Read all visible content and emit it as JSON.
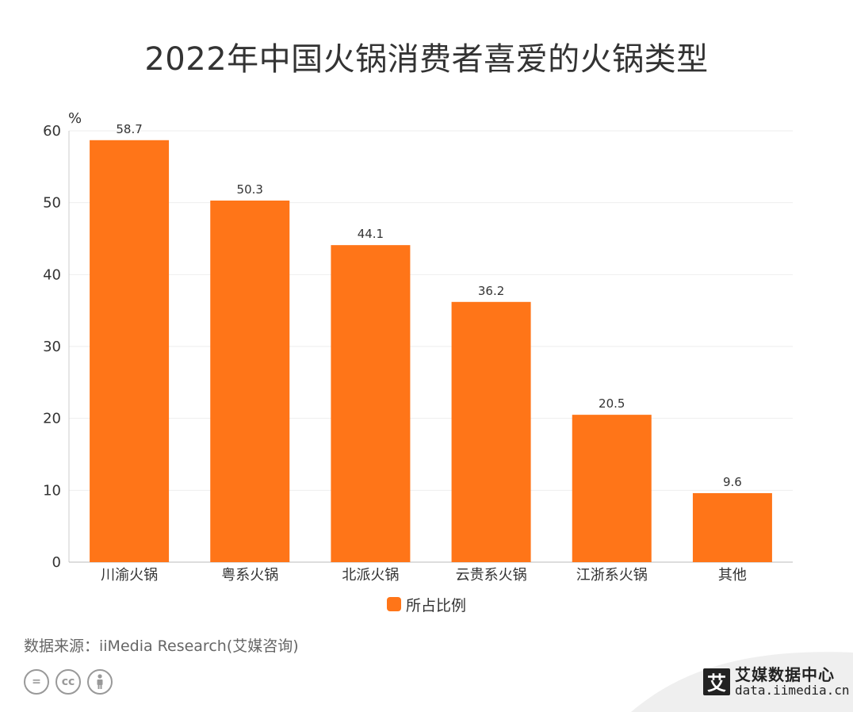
{
  "title": "2022年中国火锅消费者喜爱的火锅类型",
  "chart_data": {
    "type": "bar",
    "title": "2022年中国火锅消费者喜爱的火锅类型",
    "ylabel": "%",
    "ylim": [
      0,
      60
    ],
    "yticks": [
      0,
      10,
      20,
      30,
      40,
      50,
      60
    ],
    "grid": true,
    "legend_position": "bottom",
    "categories": [
      "川渝火锅",
      "粤系火锅",
      "北派火锅",
      "云贵系火锅",
      "江浙系火锅",
      "其他"
    ],
    "series": [
      {
        "name": "所占比例",
        "color": "#FF7518",
        "values": [
          58.7,
          50.3,
          44.1,
          36.2,
          20.5,
          9.6
        ],
        "labels": [
          "58.7",
          "50.3",
          "44.1",
          "36.2",
          "20.5",
          "9.6"
        ]
      }
    ]
  },
  "legend": {
    "label": "所占比例",
    "color": "#FF7518"
  },
  "source": "数据来源：iiMedia Research(艾媒咨询)",
  "license_icons": [
    "equals-icon",
    "cc-icon",
    "person-icon"
  ],
  "brand": {
    "logo_char": "艾",
    "name": "艾媒数据中心",
    "url": "data.iimedia.cn"
  }
}
